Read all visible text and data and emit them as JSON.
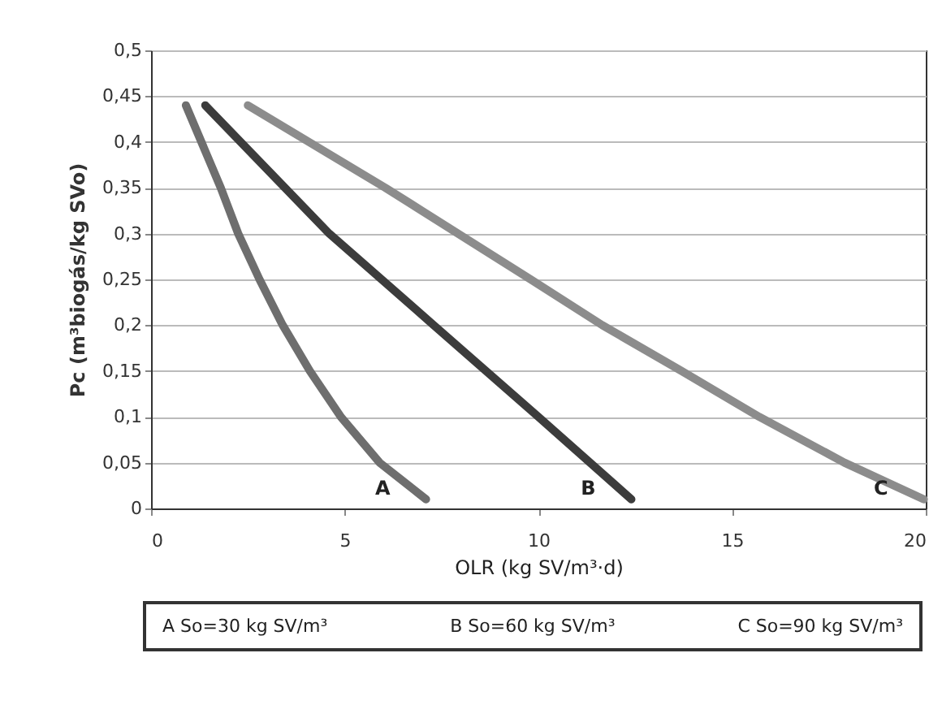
{
  "chart_data": {
    "type": "line",
    "xlabel": "OLR (kg SV/m³·d)",
    "ylabel": "Pc (m³biogás/kg SVo)",
    "xlim": [
      0,
      20
    ],
    "xticks": [
      0,
      5,
      10,
      15,
      20
    ],
    "ylim": [
      0,
      0.5
    ],
    "yticks": [
      {
        "value": 0,
        "label": "0"
      },
      {
        "value": 0.05,
        "label": "0,05"
      },
      {
        "value": 0.1,
        "label": "0,1"
      },
      {
        "value": 0.15,
        "label": "0,15"
      },
      {
        "value": 0.2,
        "label": "0,2"
      },
      {
        "value": 0.25,
        "label": "0,25"
      },
      {
        "value": 0.3,
        "label": "0,3"
      },
      {
        "value": 0.35,
        "label": "0,35"
      },
      {
        "value": 0.4,
        "label": "0,4"
      },
      {
        "value": 0.45,
        "label": "0,45"
      },
      {
        "value": 0.5,
        "label": "0,5"
      }
    ],
    "grid": "y",
    "marker": "none",
    "line_style": "solid",
    "series": [
      {
        "name": "A",
        "color": "#6e6e6e",
        "x": [
          0.9,
          1.8,
          2.25,
          2.8,
          3.4,
          4.1,
          4.9,
          5.9,
          7.1
        ],
        "values": [
          0.44,
          0.35,
          0.3,
          0.25,
          0.2,
          0.15,
          0.1,
          0.05,
          0.01
        ]
      },
      {
        "name": "B",
        "color": "#3c3c3c",
        "x": [
          1.4,
          4.6,
          7.3,
          10.0,
          12.4
        ],
        "values": [
          0.44,
          0.3,
          0.2,
          0.1,
          0.01
        ]
      },
      {
        "name": "C",
        "color": "#8c8c8c",
        "x": [
          2.5,
          6.05,
          9.8,
          11.65,
          13.7,
          15.7,
          17.9,
          19.95
        ],
        "values": [
          0.44,
          0.35,
          0.25,
          0.2,
          0.15,
          0.1,
          0.05,
          0.01
        ]
      }
    ],
    "annotations": [
      "A So=30 kg SV/m³",
      "B So=60 kg SV/m³",
      "C So=90 kg SV/m³"
    ]
  }
}
